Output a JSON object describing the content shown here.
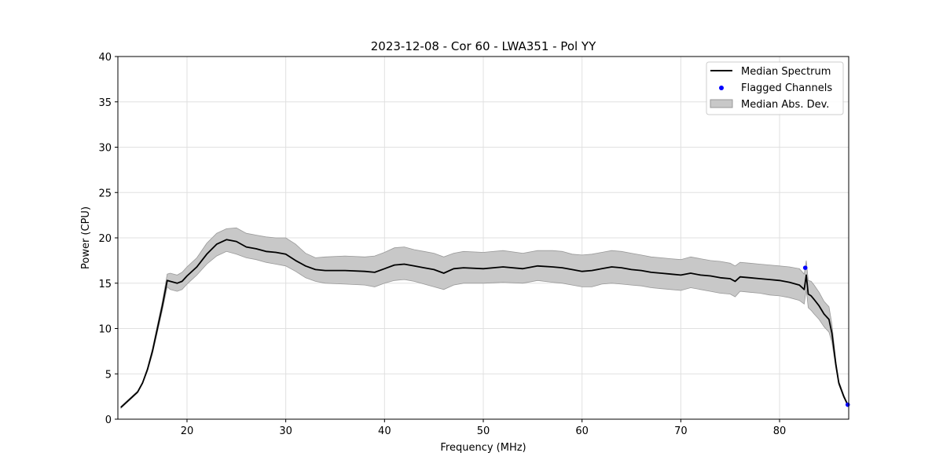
{
  "chart_data": {
    "type": "line",
    "title": "2023-12-08 - Cor 60 - LWA351 - Pol YY",
    "xlabel": "Frequency (MHz)",
    "ylabel": "Power (CPU)",
    "xlim": [
      13,
      87
    ],
    "ylim": [
      0,
      40
    ],
    "xticks": [
      20,
      30,
      40,
      50,
      60,
      70,
      80
    ],
    "yticks": [
      0,
      5,
      10,
      15,
      20,
      25,
      30,
      35,
      40
    ],
    "grid": true,
    "legend_position": "top-right",
    "legend": [
      "Median Spectrum",
      "Flagged Channels",
      "Median Abs. Dev."
    ],
    "colors": {
      "line": "#000000",
      "flagged": "#0000ff",
      "band_fill": "#c8c8c8",
      "band_edge": "#999999",
      "grid": "#e0e0e0"
    },
    "series": [
      {
        "name": "Median Spectrum",
        "x": [
          13.3,
          14.0,
          15.0,
          15.5,
          16.0,
          16.5,
          17.0,
          17.5,
          18.0,
          18.3,
          19.0,
          19.5,
          20.0,
          21.0,
          22.0,
          23.0,
          24.0,
          25.0,
          26.0,
          27.0,
          28.0,
          29.0,
          30.0,
          31.0,
          32.0,
          33.0,
          34.0,
          36.0,
          38.0,
          39.0,
          40.0,
          41.0,
          42.0,
          43.0,
          44.0,
          45.0,
          46.0,
          47.0,
          48.0,
          50.0,
          52.0,
          54.0,
          55.5,
          57.0,
          58.0,
          59.0,
          60.0,
          61.0,
          62.0,
          63.0,
          64.0,
          65.0,
          66.0,
          67.0,
          68.0,
          69.0,
          70.0,
          71.0,
          72.0,
          73.0,
          74.0,
          75.0,
          75.5,
          76.0,
          77.0,
          78.0,
          79.0,
          80.0,
          81.0,
          82.0,
          82.5,
          82.7,
          82.9,
          83.2,
          83.5,
          84.0,
          84.5,
          85.0,
          85.3,
          85.7,
          86.0,
          86.5,
          86.9
        ],
        "values": [
          1.3,
          2.0,
          3.0,
          4.0,
          5.5,
          7.5,
          10.0,
          12.5,
          15.3,
          15.2,
          15.0,
          15.2,
          15.8,
          16.8,
          18.2,
          19.3,
          19.8,
          19.6,
          19.0,
          18.8,
          18.5,
          18.4,
          18.2,
          17.5,
          16.9,
          16.5,
          16.4,
          16.4,
          16.3,
          16.2,
          16.6,
          17.0,
          17.1,
          16.9,
          16.7,
          16.5,
          16.1,
          16.6,
          16.7,
          16.6,
          16.8,
          16.6,
          16.9,
          16.8,
          16.7,
          16.5,
          16.3,
          16.4,
          16.6,
          16.8,
          16.7,
          16.5,
          16.4,
          16.2,
          16.1,
          16.0,
          15.9,
          16.1,
          15.9,
          15.8,
          15.6,
          15.5,
          15.2,
          15.7,
          15.6,
          15.5,
          15.4,
          15.3,
          15.1,
          14.8,
          14.3,
          15.9,
          13.8,
          13.6,
          13.2,
          12.5,
          11.6,
          11.0,
          9.5,
          6.0,
          4.0,
          2.5,
          1.6
        ]
      },
      {
        "name": "Median Abs. Dev.",
        "x": [
          13.3,
          14.0,
          15.0,
          15.5,
          16.0,
          16.5,
          17.0,
          17.5,
          18.0,
          18.3,
          19.0,
          19.5,
          20.0,
          21.0,
          22.0,
          23.0,
          24.0,
          25.0,
          26.0,
          27.0,
          28.0,
          29.0,
          30.0,
          31.0,
          32.0,
          33.0,
          34.0,
          36.0,
          38.0,
          39.0,
          40.0,
          41.0,
          42.0,
          43.0,
          44.0,
          45.0,
          46.0,
          47.0,
          48.0,
          50.0,
          52.0,
          54.0,
          55.5,
          57.0,
          58.0,
          59.0,
          60.0,
          61.0,
          62.0,
          63.0,
          64.0,
          65.0,
          66.0,
          67.0,
          68.0,
          69.0,
          70.0,
          71.0,
          72.0,
          73.0,
          74.0,
          75.0,
          75.5,
          76.0,
          77.0,
          78.0,
          79.0,
          80.0,
          81.0,
          82.0,
          82.5,
          82.7,
          82.9,
          83.2,
          83.5,
          84.0,
          84.5,
          85.0,
          85.3,
          85.7,
          86.0,
          86.5,
          86.9
        ],
        "lower": [
          1.2,
          1.9,
          2.9,
          3.9,
          5.3,
          7.2,
          9.6,
          12.0,
          14.6,
          14.3,
          14.1,
          14.3,
          14.9,
          15.9,
          17.1,
          18.0,
          18.5,
          18.2,
          17.8,
          17.6,
          17.3,
          17.1,
          16.9,
          16.3,
          15.6,
          15.2,
          15.0,
          14.9,
          14.8,
          14.6,
          15.0,
          15.3,
          15.4,
          15.2,
          14.9,
          14.6,
          14.3,
          14.8,
          15.0,
          15.0,
          15.1,
          15.0,
          15.3,
          15.1,
          15.0,
          14.8,
          14.6,
          14.6,
          14.9,
          15.0,
          14.9,
          14.8,
          14.7,
          14.5,
          14.4,
          14.3,
          14.2,
          14.5,
          14.3,
          14.1,
          13.9,
          13.8,
          13.5,
          14.1,
          14.0,
          13.9,
          13.7,
          13.6,
          13.4,
          13.1,
          12.7,
          14.3,
          12.3,
          12.0,
          11.6,
          11.0,
          10.2,
          9.6,
          8.5,
          5.6,
          3.8,
          2.4,
          1.5
        ],
        "upper": [
          1.4,
          2.1,
          3.1,
          4.1,
          5.7,
          7.8,
          10.4,
          13.0,
          16.0,
          16.1,
          15.9,
          16.2,
          16.8,
          17.8,
          19.4,
          20.5,
          21.0,
          21.1,
          20.5,
          20.3,
          20.1,
          20.0,
          20.0,
          19.3,
          18.3,
          17.8,
          17.9,
          18.0,
          17.9,
          18.0,
          18.4,
          18.9,
          19.0,
          18.7,
          18.5,
          18.3,
          17.9,
          18.3,
          18.5,
          18.4,
          18.6,
          18.3,
          18.6,
          18.6,
          18.5,
          18.2,
          18.1,
          18.2,
          18.4,
          18.6,
          18.5,
          18.3,
          18.1,
          17.9,
          17.8,
          17.7,
          17.6,
          17.9,
          17.7,
          17.5,
          17.4,
          17.2,
          16.9,
          17.3,
          17.2,
          17.1,
          17.0,
          16.9,
          16.8,
          16.6,
          16.0,
          17.5,
          15.3,
          15.2,
          14.8,
          14.0,
          13.0,
          12.4,
          10.5,
          6.4,
          4.2,
          2.7,
          1.7
        ]
      }
    ],
    "flagged_channels": [
      {
        "x": 82.6,
        "y": 16.7
      },
      {
        "x": 86.9,
        "y": 1.6
      }
    ]
  }
}
